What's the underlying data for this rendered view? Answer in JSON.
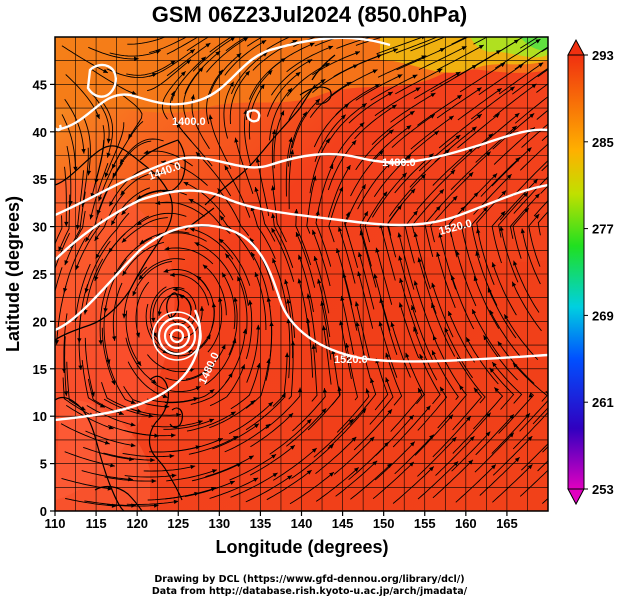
{
  "title": "GSM 06Z23Jul2024 (850.0hPa)",
  "x_axis": {
    "label": "Longitude (degrees)",
    "ticks": [
      "110",
      "115",
      "120",
      "125",
      "130",
      "135",
      "140",
      "145",
      "150",
      "155",
      "160",
      "165"
    ],
    "range": [
      110,
      170
    ]
  },
  "y_axis": {
    "label": "Latitude  (degrees)",
    "ticks": [
      "0",
      "5",
      "10",
      "15",
      "20",
      "25",
      "30",
      "35",
      "40",
      "45"
    ],
    "range": [
      0,
      50
    ]
  },
  "colorbar": {
    "ticks": [
      "293",
      "285",
      "277",
      "269",
      "261",
      "253"
    ],
    "range": [
      253,
      293
    ],
    "colors": [
      "#e000c0",
      "#2000c0",
      "#0090ff",
      "#00e0a0",
      "#60e000",
      "#f0e000",
      "#ff9000",
      "#ff3000"
    ]
  },
  "contour_labels": [
    "1400.0",
    "1440.0",
    "1480.0",
    "1520.0",
    "1520.0",
    "1480.0"
  ],
  "credits": {
    "line1": "Drawing by DCL (https://www.gfd-dennou.org/library/dcl/)",
    "line2": "Data from http://database.rish.kyoto-u.ac.jp/arch/jmadata/"
  },
  "colors": {
    "field_warm": "#f33a1a",
    "field_hot": "#ff4a2a",
    "field_cool": "#f59a10",
    "field_cold": "#9de020",
    "contour": "#ffffff",
    "grid": "#000000"
  }
}
